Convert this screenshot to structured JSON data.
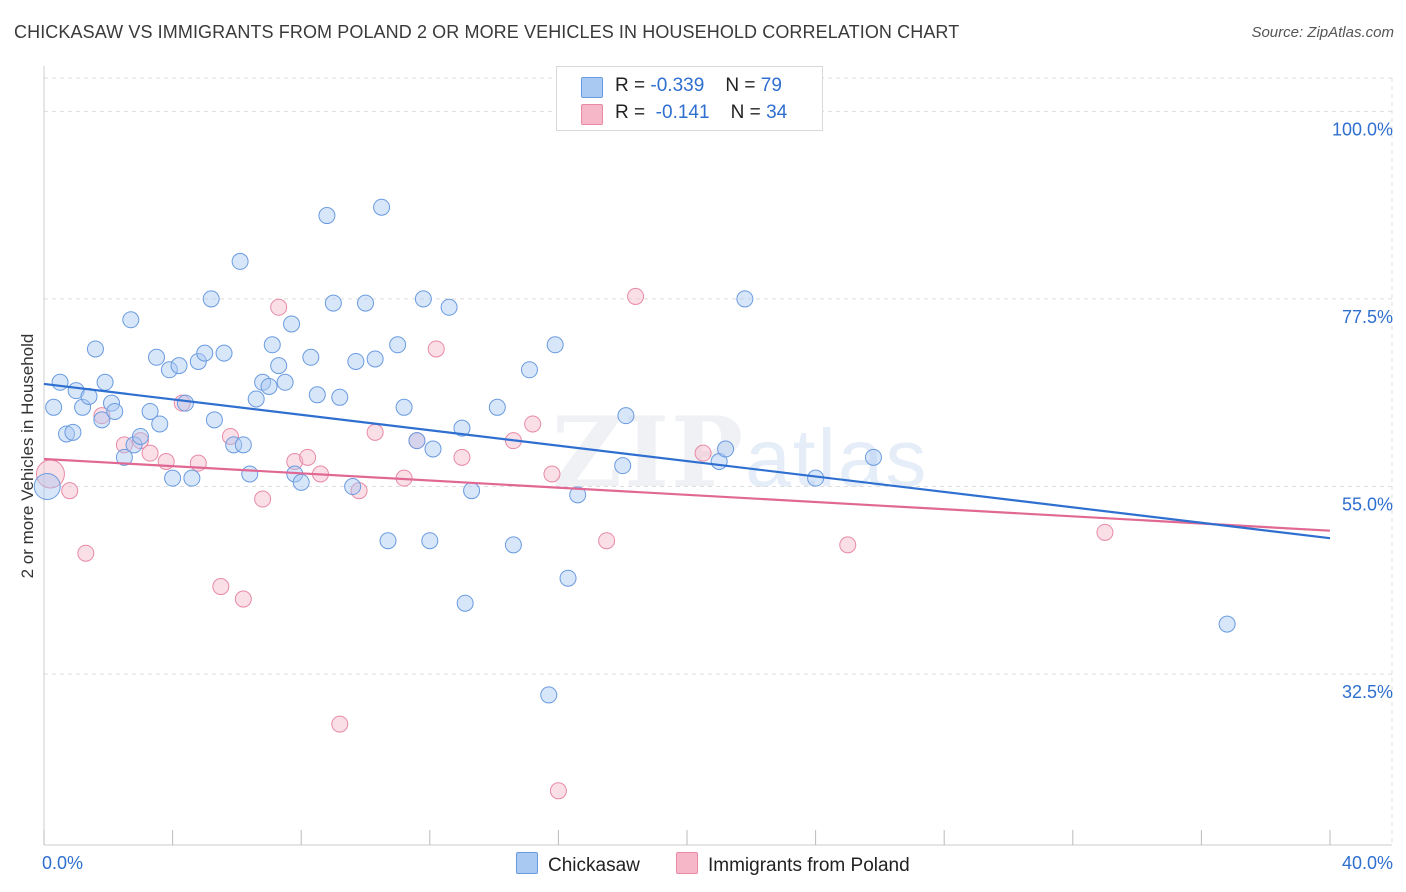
{
  "title": "CHICKASAW VS IMMIGRANTS FROM POLAND 2 OR MORE VEHICLES IN HOUSEHOLD CORRELATION CHART",
  "source": "Source: ZipAtlas.com",
  "watermark": {
    "zip": "ZIP",
    "atlas": "atlas"
  },
  "legend": {
    "rows": [
      {
        "r_label": "R =",
        "r_value": "-0.339",
        "n_label": "N =",
        "n_value": "79",
        "color": "#a9c8f2"
      },
      {
        "r_label": "R =",
        "r_value": "-0.141",
        "n_label": "N =",
        "n_value": "34",
        "color": "#f6b8c9"
      }
    ]
  },
  "bottom_legend": [
    {
      "label": "Chickasaw",
      "color": "#a9c8f2"
    },
    {
      "label": "Immigrants from Poland",
      "color": "#f6b8c9"
    }
  ],
  "colors": {
    "blue_fill": "#a9c8f2",
    "blue_stroke": "#6a9be0",
    "blue_line": "#2f6fd0",
    "pink_fill": "#f6b8c9",
    "pink_stroke": "#e88aa6",
    "pink_line": "#e06893",
    "grid": "#dedede",
    "axis_text": "#2f6fd0"
  },
  "chart_data": {
    "type": "scatter",
    "title": "CHICKASAW VS IMMIGRANTS FROM POLAND 2 OR MORE VEHICLES IN HOUSEHOLD CORRELATION CHART",
    "xlabel": "",
    "ylabel": "2 or more Vehicles in Household",
    "xlim": [
      0,
      40
    ],
    "ylim": [
      12,
      104
    ],
    "x_tick_labels": [
      "0.0%",
      "40.0%"
    ],
    "y_ticks": [
      32.5,
      55.0,
      77.5,
      100.0
    ],
    "y_tick_labels": [
      "32.5%",
      "55.0%",
      "77.5%",
      "100.0%"
    ],
    "grid": true,
    "legend_position": "top-center",
    "series": [
      {
        "name": "Chickasaw",
        "r": -0.339,
        "n": 79,
        "trend": {
          "x": [
            0,
            40
          ],
          "y": [
            67.3,
            48.8
          ]
        },
        "points": [
          [
            0.3,
            64.5
          ],
          [
            0.5,
            67.5
          ],
          [
            0.7,
            61.3
          ],
          [
            0.9,
            61.5
          ],
          [
            1.0,
            66.5
          ],
          [
            1.2,
            64.5
          ],
          [
            1.4,
            65.8
          ],
          [
            1.6,
            71.5
          ],
          [
            1.8,
            63.0
          ],
          [
            1.9,
            67.5
          ],
          [
            2.1,
            65.0
          ],
          [
            2.2,
            64.0
          ],
          [
            2.5,
            58.5
          ],
          [
            2.7,
            75.0
          ],
          [
            2.8,
            60.0
          ],
          [
            3.0,
            61.0
          ],
          [
            3.3,
            64.0
          ],
          [
            3.5,
            70.5
          ],
          [
            3.6,
            62.5
          ],
          [
            3.9,
            69.0
          ],
          [
            4.0,
            56.0
          ],
          [
            4.2,
            69.5
          ],
          [
            4.4,
            65.0
          ],
          [
            4.6,
            56.0
          ],
          [
            4.8,
            70.0
          ],
          [
            5.0,
            71.0
          ],
          [
            5.2,
            77.5
          ],
          [
            5.3,
            63.0
          ],
          [
            5.6,
            71.0
          ],
          [
            5.9,
            60.0
          ],
          [
            6.1,
            82.0
          ],
          [
            6.2,
            60.0
          ],
          [
            6.4,
            56.5
          ],
          [
            6.6,
            65.5
          ],
          [
            6.8,
            67.5
          ],
          [
            7.0,
            67.0
          ],
          [
            7.1,
            72.0
          ],
          [
            7.3,
            69.5
          ],
          [
            7.5,
            67.5
          ],
          [
            7.7,
            74.5
          ],
          [
            7.8,
            56.5
          ],
          [
            8.0,
            55.5
          ],
          [
            8.3,
            70.5
          ],
          [
            8.5,
            66.0
          ],
          [
            8.8,
            87.5
          ],
          [
            9.0,
            77.0
          ],
          [
            9.2,
            65.7
          ],
          [
            9.6,
            55.0
          ],
          [
            9.7,
            70.0
          ],
          [
            10.0,
            77.0
          ],
          [
            10.3,
            70.3
          ],
          [
            10.5,
            88.5
          ],
          [
            10.7,
            48.5
          ],
          [
            11.0,
            72.0
          ],
          [
            11.2,
            64.5
          ],
          [
            11.6,
            60.5
          ],
          [
            11.8,
            77.5
          ],
          [
            12.0,
            48.5
          ],
          [
            12.1,
            59.5
          ],
          [
            12.6,
            76.5
          ],
          [
            13.0,
            62.0
          ],
          [
            13.1,
            41.0
          ],
          [
            13.3,
            54.5
          ],
          [
            14.1,
            64.5
          ],
          [
            14.6,
            48.0
          ],
          [
            15.1,
            69.0
          ],
          [
            15.7,
            30.0
          ],
          [
            15.9,
            72.0
          ],
          [
            16.3,
            44.0
          ],
          [
            16.6,
            54.0
          ],
          [
            18.0,
            57.5
          ],
          [
            18.1,
            63.5
          ],
          [
            21.0,
            58.0
          ],
          [
            21.2,
            59.5
          ],
          [
            21.8,
            77.5
          ],
          [
            24.0,
            56.0
          ],
          [
            25.8,
            58.5
          ],
          [
            36.8,
            38.5
          ],
          [
            0.1,
            55.0
          ]
        ]
      },
      {
        "name": "Immigrants from Poland",
        "r": -0.141,
        "n": 34,
        "trend": {
          "x": [
            0,
            40
          ],
          "y": [
            58.3,
            49.7
          ]
        },
        "points": [
          [
            0.2,
            56.5
          ],
          [
            0.8,
            54.5
          ],
          [
            1.3,
            47.0
          ],
          [
            1.8,
            63.5
          ],
          [
            2.5,
            60.0
          ],
          [
            3.0,
            60.5
          ],
          [
            3.3,
            59.0
          ],
          [
            3.8,
            58.0
          ],
          [
            4.3,
            65.0
          ],
          [
            4.8,
            57.8
          ],
          [
            5.5,
            43.0
          ],
          [
            5.8,
            61.0
          ],
          [
            6.2,
            41.5
          ],
          [
            6.8,
            53.5
          ],
          [
            7.3,
            76.5
          ],
          [
            7.8,
            58.0
          ],
          [
            8.2,
            58.5
          ],
          [
            8.6,
            56.5
          ],
          [
            9.2,
            26.5
          ],
          [
            9.8,
            54.5
          ],
          [
            10.3,
            61.5
          ],
          [
            11.2,
            56.0
          ],
          [
            11.6,
            60.5
          ],
          [
            12.2,
            71.5
          ],
          [
            13.0,
            58.5
          ],
          [
            14.6,
            60.5
          ],
          [
            15.2,
            62.5
          ],
          [
            15.8,
            56.5
          ],
          [
            16.0,
            18.5
          ],
          [
            17.5,
            48.5
          ],
          [
            18.4,
            77.8
          ],
          [
            20.5,
            59.0
          ],
          [
            25.0,
            48.0
          ],
          [
            33.0,
            49.5
          ]
        ]
      }
    ]
  }
}
